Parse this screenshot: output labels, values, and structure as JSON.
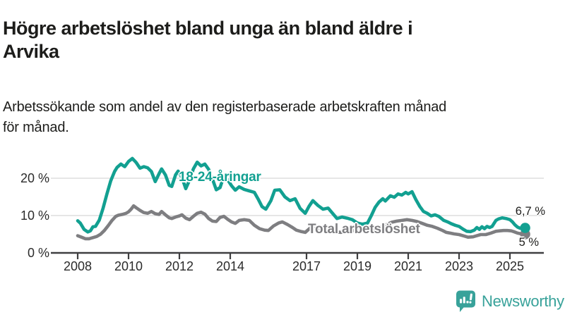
{
  "header": {
    "title_lines": [
      "Högre arbetslöshet bland unga än bland äldre i",
      "Arvika"
    ],
    "subtitle_lines": [
      "Arbetssökande som andel av den registerbaserade arbetskraften månad",
      "för månad."
    ]
  },
  "chart_data": {
    "type": "line",
    "title": "Högre arbetslöshet bland unga än bland äldre i Arvika",
    "subtitle": "Arbetssökande som andel av den registerbaserade arbetskraften månad för månad.",
    "grid": "horizontal",
    "legend_position": "inline-labels",
    "x_axis": {
      "range": [
        2008,
        2025.7
      ],
      "tick_years": [
        2008,
        2010,
        2012,
        2014,
        2017,
        2019,
        2021,
        2023,
        2025
      ]
    },
    "y_axis": {
      "unit": "%",
      "range": [
        0,
        27
      ],
      "ticks": [
        0,
        10,
        20
      ],
      "tick_labels": [
        "0 %",
        "10 %",
        "20 %"
      ]
    },
    "series": [
      {
        "name": "18-24-åringar",
        "color": "#12a091",
        "end_label": "6,7 %",
        "end_value": 6.7,
        "points": [
          [
            2008.0,
            8.6
          ],
          [
            2008.1,
            8.0
          ],
          [
            2008.25,
            6.3
          ],
          [
            2008.4,
            5.6
          ],
          [
            2008.5,
            5.9
          ],
          [
            2008.6,
            7.0
          ],
          [
            2008.7,
            7.1
          ],
          [
            2008.85,
            8.8
          ],
          [
            2009.0,
            12.0
          ],
          [
            2009.15,
            15.8
          ],
          [
            2009.3,
            19.3
          ],
          [
            2009.45,
            21.8
          ],
          [
            2009.55,
            22.9
          ],
          [
            2009.7,
            23.8
          ],
          [
            2009.85,
            23.1
          ],
          [
            2010.0,
            24.5
          ],
          [
            2010.15,
            25.3
          ],
          [
            2010.3,
            24.2
          ],
          [
            2010.45,
            22.7
          ],
          [
            2010.6,
            23.1
          ],
          [
            2010.75,
            22.8
          ],
          [
            2010.9,
            21.8
          ],
          [
            2011.05,
            19.1
          ],
          [
            2011.2,
            21.2
          ],
          [
            2011.3,
            22.5
          ],
          [
            2011.45,
            20.9
          ],
          [
            2011.6,
            18.1
          ],
          [
            2011.7,
            17.8
          ],
          [
            2011.85,
            20.9
          ],
          [
            2011.95,
            21.9
          ],
          [
            2012.1,
            20.2
          ],
          [
            2012.25,
            17.2
          ],
          [
            2012.4,
            19.5
          ],
          [
            2012.55,
            22.5
          ],
          [
            2012.7,
            24.3
          ],
          [
            2012.85,
            23.3
          ],
          [
            2013.0,
            23.8
          ],
          [
            2013.15,
            22.4
          ],
          [
            2013.3,
            19.8
          ],
          [
            2013.45,
            16.9
          ],
          [
            2013.6,
            17.5
          ],
          [
            2013.75,
            20.6
          ],
          [
            2013.9,
            19.6
          ],
          [
            2014.05,
            18.0
          ],
          [
            2014.2,
            16.8
          ],
          [
            2014.35,
            17.7
          ],
          [
            2014.55,
            17.0
          ],
          [
            2014.75,
            16.6
          ],
          [
            2014.95,
            16.2
          ],
          [
            2015.1,
            14.4
          ],
          [
            2015.25,
            12.4
          ],
          [
            2015.4,
            11.7
          ],
          [
            2015.6,
            14.0
          ],
          [
            2015.75,
            16.8
          ],
          [
            2015.95,
            16.9
          ],
          [
            2016.15,
            15.0
          ],
          [
            2016.35,
            14.0
          ],
          [
            2016.55,
            14.5
          ],
          [
            2016.75,
            11.9
          ],
          [
            2016.95,
            10.6
          ],
          [
            2017.1,
            12.5
          ],
          [
            2017.25,
            14.0
          ],
          [
            2017.45,
            12.7
          ],
          [
            2017.65,
            11.7
          ],
          [
            2017.85,
            12.0
          ],
          [
            2018.05,
            10.4
          ],
          [
            2018.2,
            9.2
          ],
          [
            2018.4,
            9.6
          ],
          [
            2018.6,
            9.3
          ],
          [
            2018.8,
            8.9
          ],
          [
            2019.0,
            8.0
          ],
          [
            2019.2,
            7.7
          ],
          [
            2019.4,
            8.0
          ],
          [
            2019.55,
            10.0
          ],
          [
            2019.7,
            12.2
          ],
          [
            2019.85,
            13.6
          ],
          [
            2020.0,
            14.5
          ],
          [
            2020.1,
            13.9
          ],
          [
            2020.3,
            15.3
          ],
          [
            2020.45,
            14.9
          ],
          [
            2020.6,
            15.8
          ],
          [
            2020.75,
            15.5
          ],
          [
            2020.9,
            16.2
          ],
          [
            2021.0,
            15.8
          ],
          [
            2021.15,
            16.4
          ],
          [
            2021.3,
            14.3
          ],
          [
            2021.45,
            12.5
          ],
          [
            2021.6,
            11.1
          ],
          [
            2021.75,
            10.6
          ],
          [
            2021.9,
            9.9
          ],
          [
            2022.05,
            10.2
          ],
          [
            2022.2,
            9.8
          ],
          [
            2022.4,
            8.7
          ],
          [
            2022.55,
            8.3
          ],
          [
            2022.7,
            7.8
          ],
          [
            2022.85,
            7.4
          ],
          [
            2023.0,
            7.1
          ],
          [
            2023.15,
            6.4
          ],
          [
            2023.3,
            5.8
          ],
          [
            2023.45,
            5.7
          ],
          [
            2023.6,
            6.1
          ],
          [
            2023.7,
            6.8
          ],
          [
            2023.8,
            6.3
          ],
          [
            2023.9,
            7.0
          ],
          [
            2024.0,
            6.5
          ],
          [
            2024.1,
            7.1
          ],
          [
            2024.2,
            6.8
          ],
          [
            2024.3,
            7.1
          ],
          [
            2024.45,
            8.7
          ],
          [
            2024.55,
            9.1
          ],
          [
            2024.7,
            9.4
          ],
          [
            2024.85,
            9.2
          ],
          [
            2025.0,
            8.9
          ],
          [
            2025.1,
            8.3
          ],
          [
            2025.2,
            7.5
          ],
          [
            2025.3,
            6.9
          ],
          [
            2025.4,
            6.6
          ],
          [
            2025.5,
            6.8
          ],
          [
            2025.6,
            6.7
          ]
        ]
      },
      {
        "name": "Total arbetslöshet",
        "color": "#7e7e81",
        "end_label": "5 %",
        "end_value": 5.0,
        "points": [
          [
            2008.0,
            4.6
          ],
          [
            2008.15,
            4.2
          ],
          [
            2008.3,
            3.8
          ],
          [
            2008.45,
            3.8
          ],
          [
            2008.6,
            4.1
          ],
          [
            2008.75,
            4.4
          ],
          [
            2008.9,
            5.0
          ],
          [
            2009.05,
            6.0
          ],
          [
            2009.2,
            7.3
          ],
          [
            2009.35,
            8.7
          ],
          [
            2009.5,
            9.8
          ],
          [
            2009.6,
            10.1
          ],
          [
            2009.75,
            10.3
          ],
          [
            2009.9,
            10.6
          ],
          [
            2010.0,
            11.0
          ],
          [
            2010.1,
            11.7
          ],
          [
            2010.2,
            12.6
          ],
          [
            2010.3,
            12.1
          ],
          [
            2010.45,
            11.4
          ],
          [
            2010.6,
            10.8
          ],
          [
            2010.75,
            10.6
          ],
          [
            2010.9,
            11.1
          ],
          [
            2011.05,
            10.5
          ],
          [
            2011.2,
            10.3
          ],
          [
            2011.3,
            11.1
          ],
          [
            2011.45,
            10.2
          ],
          [
            2011.6,
            9.4
          ],
          [
            2011.7,
            9.2
          ],
          [
            2011.85,
            9.6
          ],
          [
            2012.0,
            9.9
          ],
          [
            2012.1,
            10.2
          ],
          [
            2012.25,
            9.3
          ],
          [
            2012.4,
            8.9
          ],
          [
            2012.55,
            9.8
          ],
          [
            2012.7,
            10.6
          ],
          [
            2012.85,
            10.9
          ],
          [
            2013.0,
            10.4
          ],
          [
            2013.15,
            9.2
          ],
          [
            2013.3,
            8.5
          ],
          [
            2013.45,
            8.4
          ],
          [
            2013.6,
            9.5
          ],
          [
            2013.75,
            9.8
          ],
          [
            2013.9,
            9.0
          ],
          [
            2014.05,
            8.3
          ],
          [
            2014.2,
            7.9
          ],
          [
            2014.35,
            8.7
          ],
          [
            2014.55,
            8.9
          ],
          [
            2014.75,
            8.7
          ],
          [
            2014.95,
            7.4
          ],
          [
            2015.15,
            6.5
          ],
          [
            2015.35,
            6.1
          ],
          [
            2015.5,
            6.0
          ],
          [
            2015.7,
            7.2
          ],
          [
            2015.9,
            8.0
          ],
          [
            2016.05,
            8.3
          ],
          [
            2016.25,
            7.6
          ],
          [
            2016.45,
            6.8
          ],
          [
            2016.6,
            6.1
          ],
          [
            2016.8,
            5.7
          ],
          [
            2016.95,
            5.5
          ],
          [
            2017.15,
            6.7
          ],
          [
            2017.35,
            6.5
          ],
          [
            2017.55,
            6.2
          ],
          [
            2017.75,
            5.8
          ],
          [
            2017.95,
            6.0
          ],
          [
            2018.15,
            5.7
          ],
          [
            2018.35,
            5.5
          ],
          [
            2018.55,
            5.8
          ],
          [
            2018.75,
            5.9
          ],
          [
            2018.95,
            6.0
          ],
          [
            2019.15,
            5.9
          ],
          [
            2019.35,
            6.0
          ],
          [
            2019.55,
            6.3
          ],
          [
            2019.75,
            6.6
          ],
          [
            2019.95,
            7.0
          ],
          [
            2020.15,
            7.6
          ],
          [
            2020.35,
            8.2
          ],
          [
            2020.55,
            8.5
          ],
          [
            2020.75,
            8.7
          ],
          [
            2020.95,
            8.9
          ],
          [
            2021.15,
            8.7
          ],
          [
            2021.35,
            8.4
          ],
          [
            2021.55,
            7.9
          ],
          [
            2021.75,
            7.4
          ],
          [
            2021.95,
            7.1
          ],
          [
            2022.15,
            6.6
          ],
          [
            2022.35,
            6.0
          ],
          [
            2022.5,
            5.5
          ],
          [
            2022.65,
            5.3
          ],
          [
            2022.8,
            5.1
          ],
          [
            2023.0,
            4.9
          ],
          [
            2023.2,
            4.5
          ],
          [
            2023.35,
            4.2
          ],
          [
            2023.55,
            4.3
          ],
          [
            2023.7,
            4.6
          ],
          [
            2023.85,
            4.9
          ],
          [
            2024.05,
            4.9
          ],
          [
            2024.25,
            5.3
          ],
          [
            2024.45,
            5.8
          ],
          [
            2024.6,
            5.9
          ],
          [
            2024.75,
            6.0
          ],
          [
            2024.9,
            6.0
          ],
          [
            2025.05,
            5.9
          ],
          [
            2025.15,
            5.7
          ],
          [
            2025.3,
            5.3
          ],
          [
            2025.45,
            5.1
          ],
          [
            2025.6,
            5.0
          ]
        ]
      }
    ]
  },
  "footer": {
    "brand_name": "Newsworthy",
    "brand_color": "#38a29a"
  },
  "colors": {
    "background": "#ffffff",
    "text": "#1d1d1b",
    "axis": "#3f3f41",
    "axis_label": "#2b2b2b",
    "gridline": "#dedede",
    "youth_line": "#12a091",
    "total_line": "#7e7e81"
  }
}
